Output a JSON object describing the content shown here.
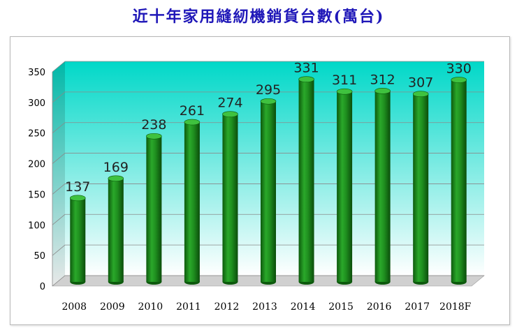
{
  "title": "近十年家用縫紉機銷貨台數(萬台)",
  "chart_data": {
    "type": "bar",
    "categories": [
      "2008",
      "2009",
      "2010",
      "2011",
      "2012",
      "2013",
      "2014",
      "2015",
      "2016",
      "2017",
      "2018F"
    ],
    "values": [
      137,
      169,
      238,
      261,
      274,
      295,
      331,
      311,
      312,
      307,
      330
    ],
    "ylim": [
      0,
      350
    ],
    "yticks": [
      0,
      50,
      100,
      150,
      200,
      250,
      300,
      350
    ],
    "grid": true,
    "legend": "none",
    "colors": {
      "bar": "#1f8f1f",
      "bar_dark": "#0d5a0d",
      "bar_light": "#3fc23f",
      "wall_top": "#00d8c8",
      "wall_bottom": "#ffffff",
      "title": "#1f17b8"
    }
  }
}
